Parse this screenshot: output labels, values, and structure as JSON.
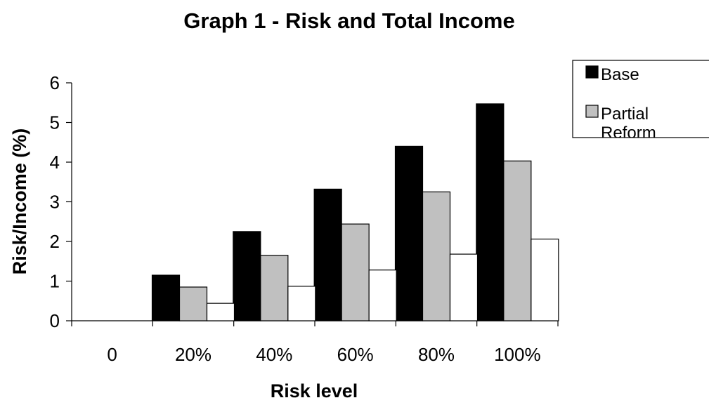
{
  "chart_data": {
    "type": "bar",
    "title": "Graph 1 - Risk and Total Income",
    "xlabel": "Risk level",
    "ylabel": "Risk/Income (%)",
    "categories": [
      "0",
      "20%",
      "40%",
      "60%",
      "80%",
      "100%"
    ],
    "y_ticks": [
      "0",
      "1",
      "2",
      "3",
      "4",
      "5",
      "6"
    ],
    "ylim": [
      0,
      6
    ],
    "grid": false,
    "legend_position": "top-right",
    "series": [
      {
        "name": "Base",
        "color": "#000000",
        "values": [
          0,
          1.15,
          2.25,
          3.32,
          4.4,
          5.47
        ]
      },
      {
        "name": "Partial Reform",
        "color": "#c0c0c0",
        "values": [
          0,
          0.85,
          1.65,
          2.44,
          3.25,
          4.03
        ]
      },
      {
        "name": "",
        "color": "#ffffff",
        "values": [
          0,
          0.44,
          0.87,
          1.28,
          1.68,
          2.06
        ]
      }
    ]
  }
}
